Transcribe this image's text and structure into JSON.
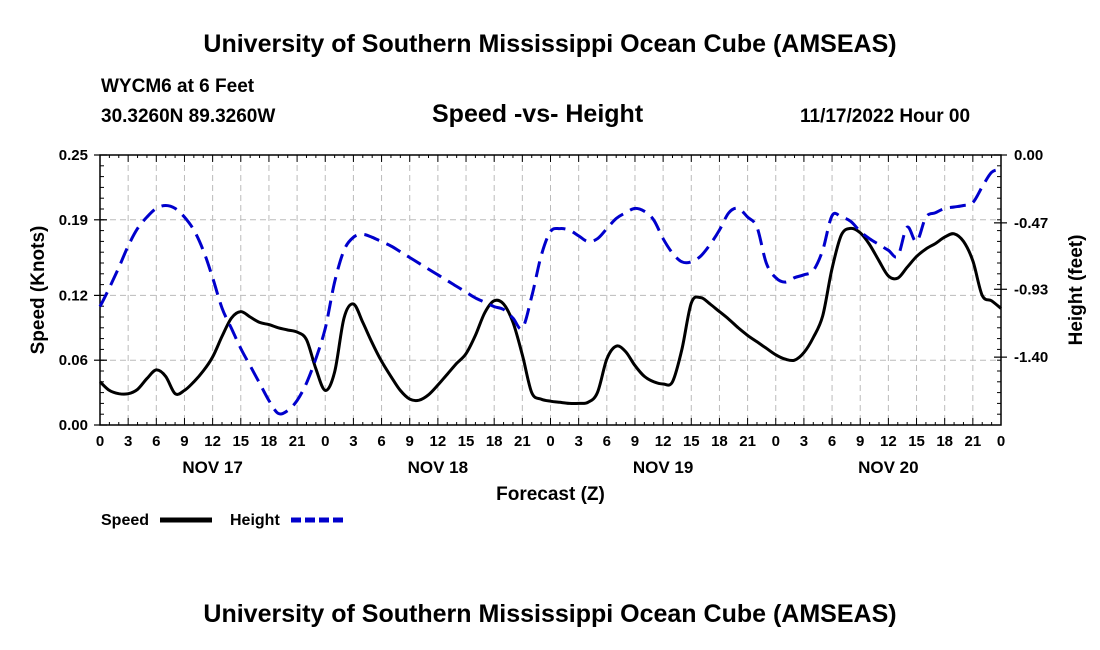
{
  "page": {
    "header_title": "University of Southern Mississippi Ocean Cube (AMSEAS)",
    "footer_title": "University of Southern Mississippi Ocean Cube (AMSEAS)",
    "station": "WYCM6 at 6 Feet",
    "coords": "30.3260N  89.3260W",
    "subtitle": "Speed -vs- Height",
    "date": "11/17/2022 Hour 00"
  },
  "chart_data": {
    "type": "line",
    "xlabel": "Forecast (Z)",
    "ylabel_left": "Speed (Knots)",
    "ylabel_right": "Height (feet)",
    "x_range": [
      0,
      96
    ],
    "ylim_left": [
      0,
      0.25
    ],
    "ylim_right": [
      -1.87,
      0.0
    ],
    "left_ticks": [
      0.0,
      0.06,
      0.12,
      0.19,
      0.25
    ],
    "left_tick_labels": [
      "0.00",
      "0.06",
      "0.12",
      "0.19",
      "0.25"
    ],
    "right_ticks": [
      0.0,
      -0.47,
      -0.93,
      -1.4
    ],
    "right_tick_labels": [
      "0.00",
      "-0.47",
      "-0.93",
      "-1.40"
    ],
    "x_ticks": [
      0,
      3,
      6,
      9,
      12,
      15,
      18,
      21,
      24,
      27,
      30,
      33,
      36,
      39,
      42,
      45,
      48,
      51,
      54,
      57,
      60,
      63,
      66,
      69,
      72,
      75,
      78,
      81,
      84,
      87,
      90,
      93,
      96
    ],
    "x_tick_labels": [
      "0",
      "3",
      "6",
      "9",
      "12",
      "15",
      "18",
      "21",
      "0",
      "3",
      "6",
      "9",
      "12",
      "15",
      "18",
      "21",
      "0",
      "3",
      "6",
      "9",
      "12",
      "15",
      "18",
      "21",
      "0",
      "3",
      "6",
      "9",
      "12",
      "15",
      "18",
      "21",
      "0"
    ],
    "day_labels": [
      {
        "x": 12,
        "label": "NOV 17"
      },
      {
        "x": 36,
        "label": "NOV 18"
      },
      {
        "x": 60,
        "label": "NOV 19"
      },
      {
        "x": 84,
        "label": "NOV 20"
      }
    ],
    "grid": true,
    "series": [
      {
        "name": "Speed",
        "axis": "left",
        "color": "#000000",
        "style": "solid",
        "x": [
          0,
          1,
          2,
          3,
          4,
          5,
          6,
          7,
          8,
          9,
          10,
          11,
          12,
          13,
          14,
          15,
          16,
          17,
          18,
          19,
          20,
          21,
          22,
          23,
          24,
          25,
          26,
          27,
          28,
          29,
          30,
          31,
          32,
          33,
          34,
          35,
          36,
          37,
          38,
          39,
          40,
          41,
          42,
          43,
          44,
          45,
          46,
          47,
          48,
          49,
          50,
          51,
          52,
          53,
          54,
          55,
          56,
          57,
          58,
          59,
          60,
          61,
          62,
          63,
          64,
          65,
          66,
          67,
          68,
          69,
          70,
          71,
          72,
          73,
          74,
          75,
          76,
          77,
          78,
          79,
          80,
          81,
          82,
          83,
          84,
          85,
          86,
          87,
          88,
          89,
          90,
          91,
          92,
          93,
          94,
          95,
          96
        ],
        "values": [
          0.04,
          0.032,
          0.029,
          0.029,
          0.033,
          0.043,
          0.051,
          0.045,
          0.029,
          0.032,
          0.04,
          0.05,
          0.063,
          0.082,
          0.099,
          0.105,
          0.1,
          0.095,
          0.093,
          0.09,
          0.088,
          0.086,
          0.079,
          0.052,
          0.032,
          0.049,
          0.099,
          0.112,
          0.095,
          0.076,
          0.059,
          0.045,
          0.032,
          0.024,
          0.023,
          0.028,
          0.037,
          0.047,
          0.057,
          0.066,
          0.083,
          0.104,
          0.115,
          0.112,
          0.095,
          0.065,
          0.03,
          0.024,
          0.022,
          0.021,
          0.02,
          0.02,
          0.021,
          0.03,
          0.061,
          0.073,
          0.068,
          0.055,
          0.045,
          0.04,
          0.038,
          0.04,
          0.07,
          0.113,
          0.118,
          0.112,
          0.105,
          0.098,
          0.09,
          0.083,
          0.077,
          0.071,
          0.065,
          0.061,
          0.06,
          0.067,
          0.081,
          0.101,
          0.145,
          0.176,
          0.182,
          0.178,
          0.167,
          0.152,
          0.138,
          0.136,
          0.146,
          0.156,
          0.163,
          0.168,
          0.174,
          0.177,
          0.17,
          0.152,
          0.12,
          0.115,
          0.108
        ]
      },
      {
        "name": "Height",
        "axis": "right",
        "color": "#0000cc",
        "style": "dashed",
        "x": [
          0,
          1,
          2,
          3,
          4,
          5,
          6,
          7,
          8,
          9,
          10,
          11,
          12,
          13,
          14,
          15,
          16,
          17,
          18,
          19,
          20,
          21,
          22,
          23,
          24,
          25,
          26,
          27,
          28,
          29,
          30,
          31,
          32,
          33,
          34,
          35,
          36,
          37,
          38,
          39,
          40,
          41,
          42,
          43,
          44,
          45,
          46,
          47,
          48,
          49,
          50,
          51,
          52,
          53,
          54,
          55,
          56,
          57,
          58,
          59,
          60,
          61,
          62,
          63,
          64,
          65,
          66,
          67,
          68,
          69,
          70,
          71,
          72,
          73,
          74,
          75,
          76,
          77,
          78,
          79,
          80,
          81,
          82,
          83,
          84,
          85,
          86,
          87,
          88,
          89,
          90,
          91,
          92,
          93,
          94,
          95,
          96
        ],
        "values": [
          -1.05,
          -0.92,
          -0.78,
          -0.63,
          -0.51,
          -0.43,
          -0.37,
          -0.35,
          -0.37,
          -0.43,
          -0.52,
          -0.66,
          -0.85,
          -1.06,
          -1.2,
          -1.34,
          -1.46,
          -1.58,
          -1.7,
          -1.79,
          -1.77,
          -1.7,
          -1.58,
          -1.41,
          -1.2,
          -0.88,
          -0.66,
          -0.57,
          -0.55,
          -0.57,
          -0.6,
          -0.63,
          -0.67,
          -0.71,
          -0.75,
          -0.79,
          -0.83,
          -0.87,
          -0.91,
          -0.95,
          -0.99,
          -1.02,
          -1.05,
          -1.07,
          -1.13,
          -1.2,
          -0.98,
          -0.7,
          -0.53,
          -0.51,
          -0.52,
          -0.56,
          -0.6,
          -0.58,
          -0.51,
          -0.44,
          -0.4,
          -0.37,
          -0.39,
          -0.45,
          -0.58,
          -0.68,
          -0.74,
          -0.74,
          -0.7,
          -0.62,
          -0.52,
          -0.4,
          -0.37,
          -0.43,
          -0.5,
          -0.75,
          -0.85,
          -0.88,
          -0.85,
          -0.83,
          -0.8,
          -0.66,
          -0.42,
          -0.43,
          -0.46,
          -0.53,
          -0.58,
          -0.62,
          -0.66,
          -0.7,
          -0.5,
          -0.6,
          -0.43,
          -0.4,
          -0.37,
          -0.36,
          -0.35,
          -0.33,
          -0.22,
          -0.12,
          -0.1
        ]
      }
    ],
    "legend": [
      {
        "label": "Speed",
        "color": "#000000",
        "style": "solid"
      },
      {
        "label": "Height",
        "color": "#0000cc",
        "style": "dashed"
      }
    ]
  }
}
